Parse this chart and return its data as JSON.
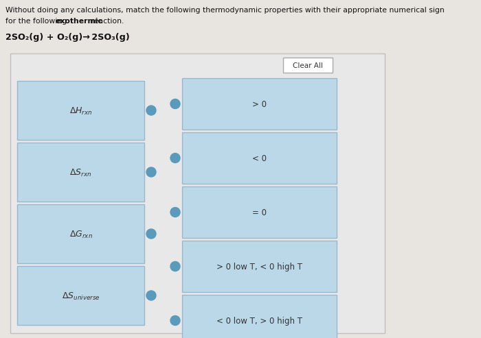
{
  "title_line1": "Without doing any calculations, match the following thermodynamic properties with their appropriate numerical sign",
  "title_line2_plain": "for the following ",
  "title_bold": "exothermic",
  "title_line2_end": " reaction.",
  "reaction": "2SO₂(g) + O₂(g)→ 2SO₃(g)",
  "clear_all_text": "Clear All",
  "left_labels": [
    "$\\Delta H_{rxn}$",
    "$\\Delta S_{rxn}$",
    "$\\Delta G_{rxn}$",
    "$\\Delta S_{universe}$"
  ],
  "right_labels": [
    "> 0",
    "< 0",
    "= 0",
    "> 0 low T, < 0 high T",
    "< 0 low T, > 0 high T"
  ],
  "outer_bg": "#e8e8e8",
  "panel_bg": "#e8e4e0",
  "box_bg": "#bbd8e8",
  "box_border": "#9ab8cc",
  "dot_color": "#5a9abb",
  "clear_btn_bg": "#ffffff",
  "clear_btn_border": "#aaaaaa",
  "title_color": "#111111",
  "label_color": "#333333"
}
